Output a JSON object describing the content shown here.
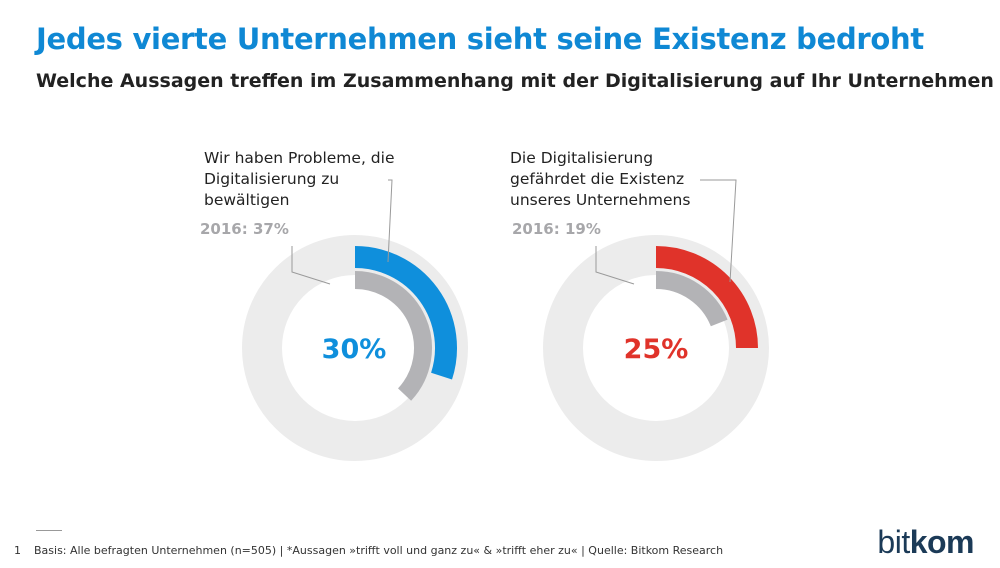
{
  "header": {
    "title": "Jedes vierte Unternehmen sieht seine Existenz bedroht",
    "subtitle": "Welche Aussagen treffen im Zusammenhang mit der Digitalisierung auf Ihr Unternehmen zu?*"
  },
  "chart_data": [
    {
      "type": "donut",
      "label_lines": [
        "Wir haben Probleme, die",
        "Digitalisierung zu",
        "bewältigen"
      ],
      "value": 30,
      "value_label": "30%",
      "previous_year": 2016,
      "previous_value": 37,
      "previous_label": "2016: 37%",
      "color": "#0f8fdc"
    },
    {
      "type": "donut",
      "label_lines": [
        "Die Digitalisierung",
        "gefährdet die Existenz",
        "unseres Unternehmens"
      ],
      "value": 25,
      "value_label": "25%",
      "previous_year": 2016,
      "previous_value": 19,
      "previous_label": "2016: 19%",
      "color": "#e0332a"
    }
  ],
  "colors": {
    "track": "#ececec",
    "previous": "#b3b3b6",
    "title": "#0f88d4"
  },
  "footnote": {
    "number": "1",
    "text": "Basis: Alle befragten Unternehmen (n=505) | *Aussagen »trifft voll und ganz zu« & »trifft eher zu« | Quelle: Bitkom Research"
  },
  "logo": {
    "part1": "bit",
    "part2": "kom"
  }
}
